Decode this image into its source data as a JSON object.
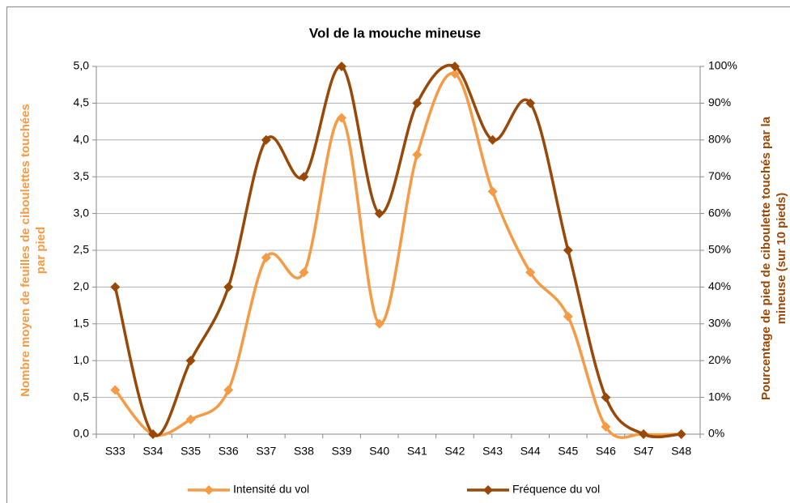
{
  "chart_data": {
    "type": "line",
    "title": "Vol de la mouche mineuse",
    "categories": [
      "S33",
      "S34",
      "S35",
      "S36",
      "S37",
      "S38",
      "S39",
      "S40",
      "S41",
      "S42",
      "S43",
      "S44",
      "S45",
      "S46",
      "S47",
      "S48"
    ],
    "series": [
      {
        "name": "Intensité du vol",
        "color": "#f59a45",
        "values": [
          0.6,
          0,
          0.2,
          0.6,
          2.4,
          2.2,
          4.3,
          1.5,
          3.8,
          4.9,
          3.3,
          2.2,
          1.6,
          0.1,
          0,
          0
        ]
      },
      {
        "name": "Fréquence du vol",
        "color": "#984807",
        "axis": "y2",
        "values": [
          40,
          0,
          20,
          40,
          80,
          70,
          100,
          60,
          90,
          100,
          80,
          90,
          50,
          10,
          0,
          0
        ]
      }
    ],
    "y_label": [
      "Nombre moyen de feuilles de ciboulettes touchées",
      "par pied"
    ],
    "y2_label": [
      "Pourcentage de pied de ciboulette touchés par la",
      "mineuse (sur 10 pieds)"
    ],
    "ylim": [
      0,
      5
    ],
    "yticks": [
      {
        "value": 0,
        "label": "0,0"
      },
      {
        "value": 0.5,
        "label": "0,5"
      },
      {
        "value": 1,
        "label": "1,0"
      },
      {
        "value": 1.5,
        "label": "1,5"
      },
      {
        "value": 2,
        "label": "2,0"
      },
      {
        "value": 2.5,
        "label": "2,5"
      },
      {
        "value": 3,
        "label": "3,0"
      },
      {
        "value": 3.5,
        "label": "3,5"
      },
      {
        "value": 4,
        "label": "4,0"
      },
      {
        "value": 4.5,
        "label": "4,5"
      },
      {
        "value": 5,
        "label": "5,0"
      }
    ],
    "y2lim": [
      0,
      100
    ],
    "y2ticks": [
      {
        "value": 0,
        "label": "0%"
      },
      {
        "value": 10,
        "label": "10%"
      },
      {
        "value": 20,
        "label": "20%"
      },
      {
        "value": 30,
        "label": "30%"
      },
      {
        "value": 40,
        "label": "40%"
      },
      {
        "value": 50,
        "label": "50%"
      },
      {
        "value": 60,
        "label": "60%"
      },
      {
        "value": 70,
        "label": "70%"
      },
      {
        "value": 80,
        "label": "80%"
      },
      {
        "value": 90,
        "label": "90%"
      },
      {
        "value": 100,
        "label": "100%"
      }
    ],
    "grid": true,
    "smooth": true,
    "legend": "bottom"
  }
}
